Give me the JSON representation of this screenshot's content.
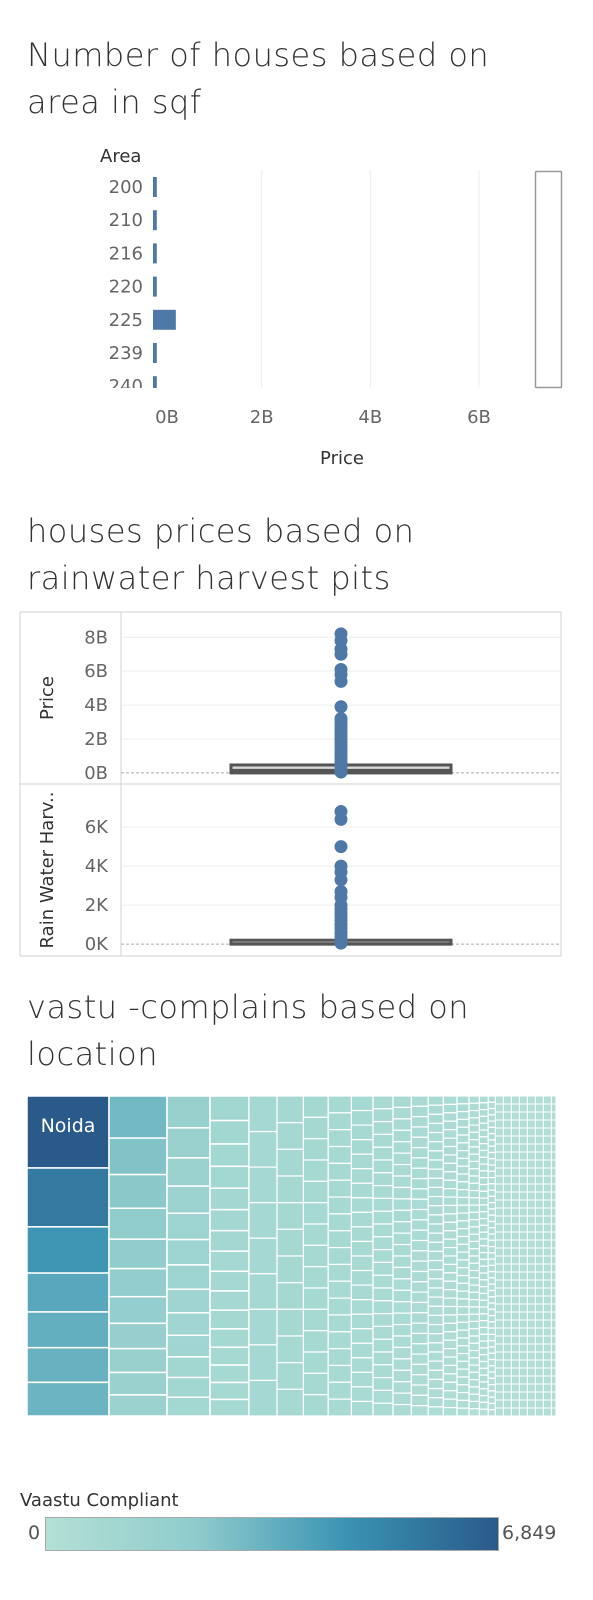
{
  "charts": {
    "area": {
      "title": "Number of houses based on\narea in sqf"
    },
    "rain": {
      "title": "houses prices based on\nrainwater harvest pits"
    },
    "vastu": {
      "title": "vastu -complains based on\nlocation"
    }
  },
  "chart_data": [
    {
      "type": "bar",
      "orientation": "horizontal",
      "title": "Number of houses based on area in sqf",
      "categories_label": "Area",
      "categories": [
        "200",
        "210",
        "216",
        "220",
        "225",
        "239",
        "240"
      ],
      "values": [
        0.01,
        0.01,
        0.01,
        0.01,
        0.06,
        0.01,
        0.01
      ],
      "xlabel": "Price",
      "xticks": [
        "0B",
        "2B",
        "4B",
        "6B"
      ],
      "xlim": [
        -0.1,
        7.5
      ],
      "color": "#4e79a7"
    },
    {
      "type": "scatter",
      "title": "houses prices based on rainwater harvest pits",
      "panels": [
        {
          "ylabel": "Price",
          "yticks": [
            "0B",
            "2B",
            "4B",
            "6B",
            "8B"
          ],
          "ylim": [
            -0.3,
            8.9
          ],
          "box": [
            0.0,
            0.15,
            0.35
          ],
          "points": [
            8.2,
            7.8,
            7.3,
            7.0,
            6.1,
            5.8,
            5.4,
            3.9,
            3.2,
            3.0,
            2.8,
            2.6,
            2.4,
            2.2,
            2.0,
            1.8,
            1.6,
            1.4,
            1.2,
            1.0,
            0.8,
            0.6,
            0.4,
            0.2,
            0.05
          ]
        },
        {
          "ylabel": "Rain Water Harv..",
          "yticks": [
            "0K",
            "2K",
            "4K",
            "6K"
          ],
          "ylim": [
            -0.3,
            7.7
          ],
          "box": [
            0.0,
            0.02,
            0.1
          ],
          "points": [
            6.8,
            6.4,
            5.0,
            4.0,
            3.7,
            3.3,
            2.7,
            2.4,
            2.0,
            1.8,
            1.6,
            1.4,
            1.2,
            1.0,
            0.8,
            0.6,
            0.4,
            0.2,
            0.05
          ]
        }
      ],
      "color": "#4e79a7"
    },
    {
      "type": "heatmap",
      "subtype": "treemap",
      "title": "vastu -complains based on location",
      "label": "Noida",
      "legend_title": "Vaastu Compliant",
      "legend_min": "0",
      "legend_max": "6,849",
      "value_range": [
        0,
        6849
      ],
      "columns": [
        {
          "values": [
            6849,
            5600,
            4400,
            3700,
            3400,
            3300,
            3200
          ]
        },
        {
          "values": [
            3000,
            2600,
            2400,
            2200,
            2100,
            2000,
            1900,
            1800,
            1700,
            1600,
            1500
          ]
        },
        {
          "values": [
            1700,
            1600,
            1500,
            1450,
            1400,
            1350,
            1300,
            1250,
            1200,
            1150,
            1100,
            1050,
            1000
          ]
        },
        {
          "values": [
            1100,
            1050,
            1000,
            980,
            960,
            940,
            920,
            900,
            880,
            860,
            840,
            820,
            800,
            780,
            760,
            740
          ]
        }
      ],
      "colors": [
        "#b3e0d6",
        "#8fcbcc",
        "#3a93b3",
        "#2a5a8a"
      ]
    }
  ]
}
